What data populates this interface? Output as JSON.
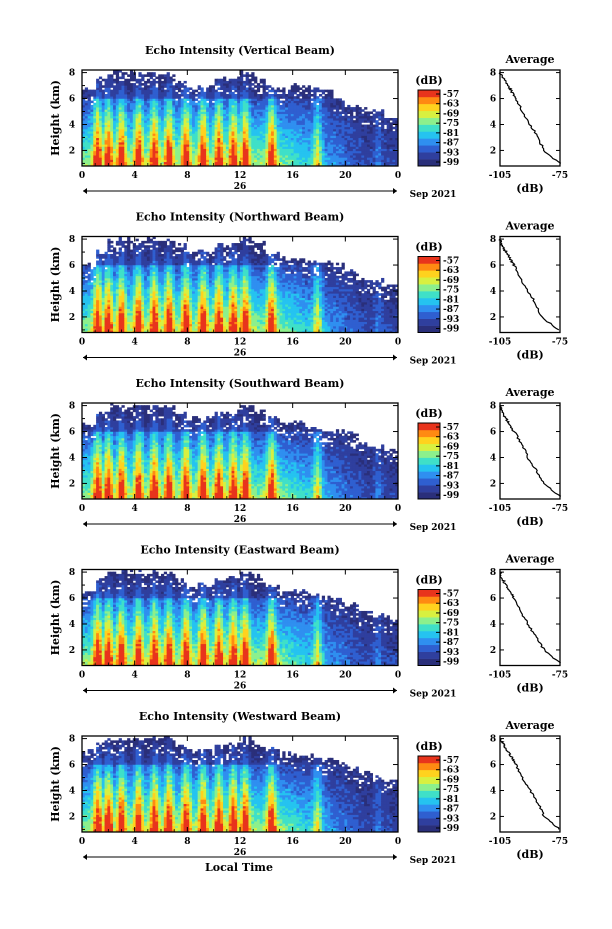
{
  "figure": {
    "x_axis_label": "Local Time",
    "date_day": "26",
    "date_label": "Sep 2021",
    "colorbar_unit": "(dB)",
    "colorbar_ticks": [
      "-57",
      "-63",
      "-69",
      "-75",
      "-81",
      "-87",
      "-93",
      "-99"
    ],
    "average_title": "Average",
    "average_xlabel": "(dB)",
    "height_label": "Height (km)",
    "colors": {
      "no_data": "#ffffff",
      "colormap": [
        "#2a2f7a",
        "#2f3f9e",
        "#2f5fd0",
        "#2f8ff0",
        "#25c3f0",
        "#3fe0c8",
        "#8cf08c",
        "#d8f040",
        "#ffd21e",
        "#ff8a12",
        "#e8341c"
      ]
    }
  },
  "chart_data": [
    {
      "type": "heatmap",
      "title": "Echo Intensity (Vertical Beam)",
      "ylabel": "Height (km)",
      "xlabel": "",
      "x_ticks": [
        "0",
        "4",
        "8",
        "12",
        "16",
        "20",
        "0"
      ],
      "y_ticks": [
        "2",
        "4",
        "6",
        "8"
      ],
      "xlim_hours": [
        0,
        24
      ],
      "ylim_km": [
        0.8,
        8.2
      ],
      "colorbar_db": [
        -99,
        -57
      ],
      "echo_top_km": [
        6.8,
        7.6,
        8.0,
        8.0,
        8.0,
        8.0,
        8.0,
        7.2,
        6.8,
        7.0,
        7.5,
        7.5,
        8.0,
        7.6,
        7.0,
        6.8,
        7.0,
        6.8,
        6.8,
        6.0,
        5.5,
        5.2,
        5.0,
        4.6
      ],
      "average_profile": {
        "title": "Average",
        "xlabel": "(dB)",
        "x_ticks": [
          "-105",
          "-75"
        ],
        "y_ticks": [
          "2",
          "4",
          "6",
          "8"
        ],
        "xlim_db": [
          -105,
          -75
        ],
        "height_km": [
          1.0,
          2.0,
          3.0,
          4.0,
          5.0,
          6.0,
          6.5,
          7.0,
          7.5,
          8.0
        ],
        "db": [
          -75,
          -83,
          -86,
          -90,
          -94,
          -97,
          -99,
          -101,
          -103,
          -105
        ]
      }
    },
    {
      "type": "heatmap",
      "title": "Echo Intensity (Northward Beam)",
      "ylabel": "Height (km)",
      "xlabel": "",
      "x_ticks": [
        "0",
        "4",
        "8",
        "12",
        "16",
        "20",
        "0"
      ],
      "y_ticks": [
        "2",
        "4",
        "6",
        "8"
      ],
      "xlim_hours": [
        0,
        24
      ],
      "ylim_km": [
        0.8,
        8.2
      ],
      "colorbar_db": [
        -99,
        -57
      ],
      "echo_top_km": [
        6.0,
        7.0,
        8.0,
        8.0,
        8.0,
        8.0,
        8.0,
        7.5,
        7.2,
        7.0,
        7.5,
        7.6,
        8.0,
        7.8,
        7.0,
        6.5,
        6.5,
        6.3,
        6.2,
        6.0,
        5.6,
        5.0,
        4.8,
        4.5
      ],
      "average_profile": {
        "title": "Average",
        "xlabel": "(dB)",
        "x_ticks": [
          "-105",
          "-75"
        ],
        "y_ticks": [
          "2",
          "4",
          "6",
          "8"
        ],
        "xlim_db": [
          -105,
          -75
        ],
        "height_km": [
          1.0,
          2.0,
          3.0,
          4.0,
          5.0,
          6.0,
          6.5,
          7.0,
          7.5,
          8.0
        ],
        "db": [
          -76,
          -84,
          -87,
          -91,
          -95,
          -98,
          -100,
          -102,
          -104,
          -105
        ]
      }
    },
    {
      "type": "heatmap",
      "title": "Echo Intensity (Southward Beam)",
      "ylabel": "Height (km)",
      "xlabel": "",
      "x_ticks": [
        "0",
        "4",
        "8",
        "12",
        "16",
        "20",
        "0"
      ],
      "y_ticks": [
        "2",
        "4",
        "6",
        "8"
      ],
      "xlim_hours": [
        0,
        24
      ],
      "ylim_km": [
        0.8,
        8.2
      ],
      "colorbar_db": [
        -99,
        -57
      ],
      "echo_top_km": [
        6.5,
        7.5,
        8.0,
        8.0,
        8.0,
        8.0,
        8.0,
        7.4,
        7.0,
        7.0,
        7.4,
        7.5,
        8.0,
        7.7,
        7.0,
        6.5,
        6.6,
        6.4,
        6.2,
        6.0,
        5.8,
        5.0,
        4.8,
        4.6
      ],
      "average_profile": {
        "title": "Average",
        "xlabel": "(dB)",
        "x_ticks": [
          "-105",
          "-75"
        ],
        "y_ticks": [
          "2",
          "4",
          "6",
          "8"
        ],
        "xlim_db": [
          -105,
          -75
        ],
        "height_km": [
          1.0,
          2.0,
          3.0,
          4.0,
          5.0,
          6.0,
          6.5,
          7.0,
          7.5,
          8.0
        ],
        "db": [
          -75,
          -83,
          -87,
          -91,
          -94,
          -98,
          -100,
          -102,
          -104,
          -105
        ]
      }
    },
    {
      "type": "heatmap",
      "title": "Echo Intensity (Eastward Beam)",
      "ylabel": "Height (km)",
      "xlabel": "",
      "x_ticks": [
        "0",
        "4",
        "8",
        "12",
        "16",
        "20",
        "0"
      ],
      "y_ticks": [
        "2",
        "4",
        "6",
        "8"
      ],
      "xlim_hours": [
        0,
        24
      ],
      "ylim_km": [
        0.8,
        8.2
      ],
      "colorbar_db": [
        -99,
        -57
      ],
      "echo_top_km": [
        6.5,
        7.6,
        8.0,
        8.0,
        8.0,
        8.0,
        8.0,
        7.4,
        7.0,
        7.0,
        7.4,
        7.6,
        8.0,
        7.6,
        7.0,
        6.4,
        6.5,
        6.3,
        6.0,
        5.8,
        5.5,
        5.0,
        4.7,
        4.5
      ],
      "average_profile": {
        "title": "Average",
        "xlabel": "(dB)",
        "x_ticks": [
          "-105",
          "-75"
        ],
        "y_ticks": [
          "2",
          "4",
          "6",
          "8"
        ],
        "xlim_db": [
          -105,
          -75
        ],
        "height_km": [
          1.0,
          2.0,
          3.0,
          4.0,
          5.0,
          6.0,
          6.5,
          7.0,
          7.5,
          8.0
        ],
        "db": [
          -75,
          -83,
          -87,
          -91,
          -95,
          -98,
          -100,
          -102,
          -104,
          -105
        ]
      }
    },
    {
      "type": "heatmap",
      "title": "Echo Intensity (Westward Beam)",
      "ylabel": "Height (km)",
      "xlabel": "Local Time",
      "x_ticks": [
        "0",
        "4",
        "8",
        "12",
        "16",
        "20",
        "0"
      ],
      "y_ticks": [
        "2",
        "4",
        "6",
        "8"
      ],
      "xlim_hours": [
        0,
        24
      ],
      "ylim_km": [
        0.8,
        8.2
      ],
      "colorbar_db": [
        -99,
        -57
      ],
      "echo_top_km": [
        7.0,
        7.8,
        8.0,
        8.0,
        8.0,
        8.0,
        8.0,
        7.5,
        7.0,
        7.0,
        7.4,
        7.6,
        8.0,
        7.6,
        7.2,
        6.8,
        6.8,
        6.6,
        6.4,
        6.2,
        5.8,
        5.4,
        5.0,
        4.8
      ],
      "average_profile": {
        "title": "Average",
        "xlabel": "(dB)",
        "x_ticks": [
          "-105",
          "-75"
        ],
        "y_ticks": [
          "2",
          "4",
          "6",
          "8"
        ],
        "xlim_db": [
          -105,
          -75
        ],
        "height_km": [
          1.0,
          2.0,
          3.0,
          4.0,
          5.0,
          6.0,
          6.5,
          7.0,
          7.5,
          8.0
        ],
        "db": [
          -75,
          -83,
          -86,
          -90,
          -94,
          -97,
          -99,
          -101,
          -103,
          -105
        ]
      }
    }
  ]
}
